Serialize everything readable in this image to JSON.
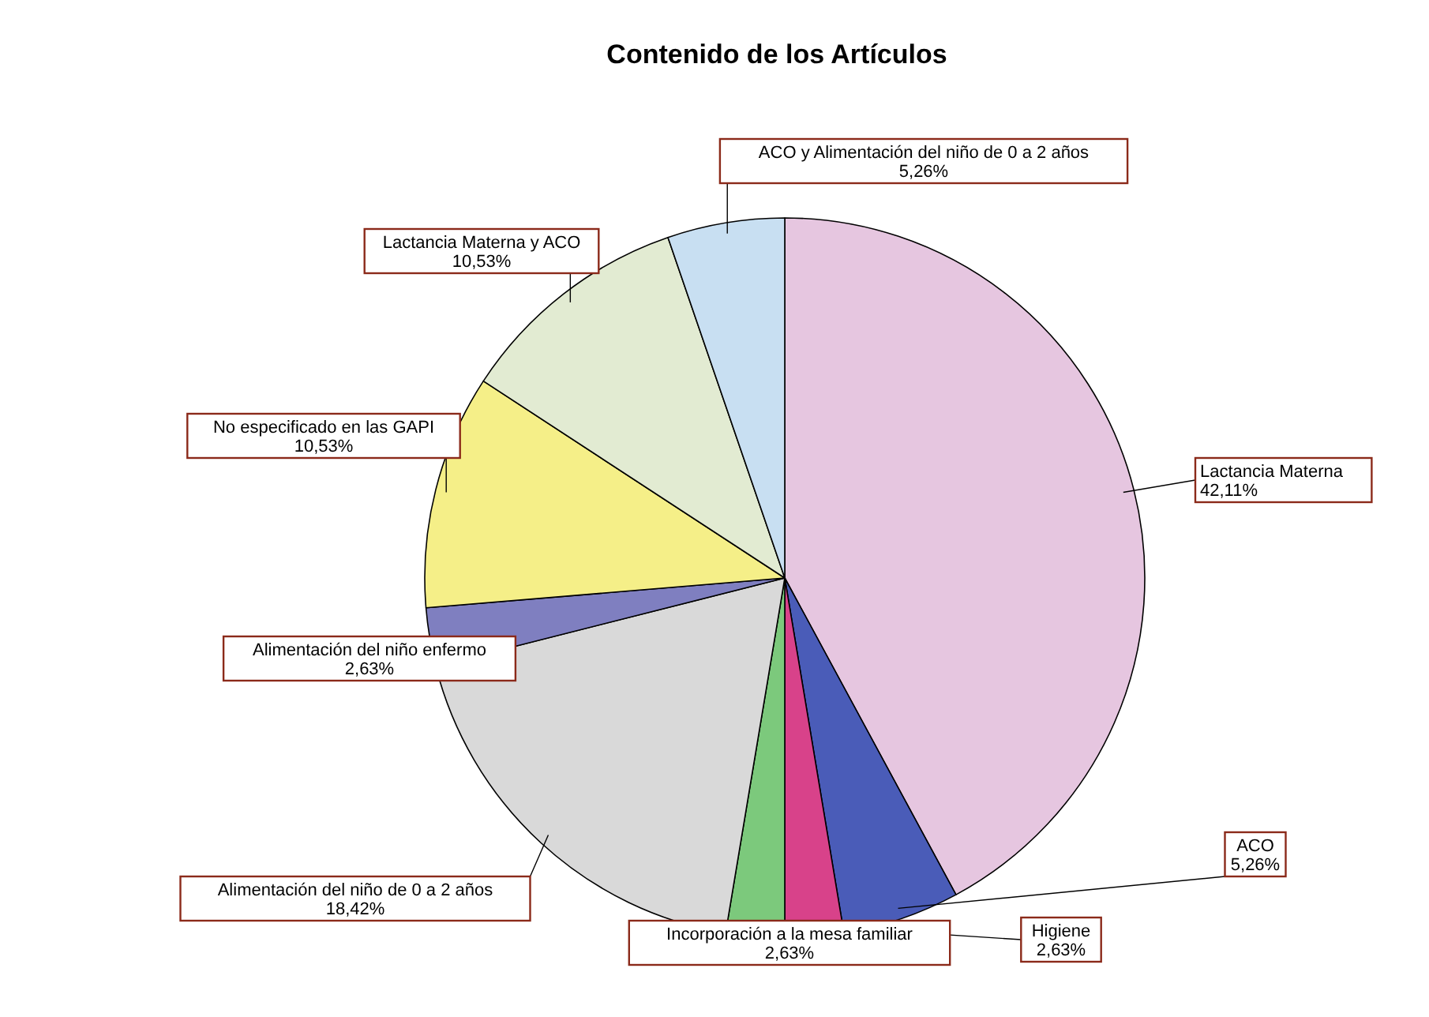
{
  "chart_data": {
    "type": "pie",
    "title": "Contenido de los Artículos",
    "categories": [
      "Lactancia Materna",
      "ACO",
      "Higiene",
      "Incorporación a la mesa familiar",
      "Alimentación del niño de 0 a 2 años",
      "Alimentación del niño enfermo",
      "No especificado en las GAPI",
      "Lactancia Materna y ACO",
      "ACO y Alimentación del niño de 0 a 2 años"
    ],
    "values": [
      42.11,
      5.26,
      2.63,
      2.63,
      18.42,
      2.63,
      10.53,
      10.53,
      5.26
    ],
    "value_labels": [
      "42,11%",
      "5,26%",
      "2,63%",
      "2,63%",
      "18,42%",
      "2,63%",
      "10,53%",
      "10,53%",
      "5,26%"
    ],
    "colors": [
      "#e6c6e0",
      "#4a5cb8",
      "#d8428a",
      "#7cc97c",
      "#d9d9d9",
      "#7f7fc0",
      "#f5ef88",
      "#e2ebd2",
      "#c8dff2"
    ],
    "legend": false
  }
}
